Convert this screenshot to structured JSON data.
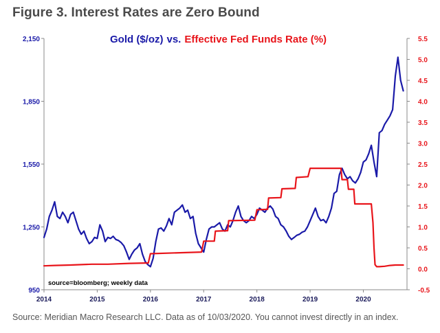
{
  "figure": {
    "title": "Figure 3. Interest Rates are Zero Bound",
    "footer": "Source: Meridian Macro Research LLC. Data as of 10/03/2020. You cannot invest directly in an index."
  },
  "colors": {
    "gold": "#1a1aa8",
    "fed": "#e8141a",
    "axis_left": "#1a1aa8",
    "axis_right": "#e8141a"
  },
  "chart_data": {
    "type": "line",
    "title_parts": {
      "gold": "Gold ($/oz)",
      "sep": "vs.",
      "fed": "Effective Fed Funds Rate (%)"
    },
    "annotation": "source=bloomberg; weekly data",
    "xlabel": "",
    "ylabel": "",
    "xlim": [
      2014.0,
      2020.82
    ],
    "y_left": {
      "lim": [
        950,
        2150
      ],
      "ticks": [
        950,
        1250,
        1550,
        1850,
        2150
      ],
      "tick_labels": [
        "950",
        "1,250",
        "1,550",
        "1,850",
        "2,150"
      ]
    },
    "y_right": {
      "lim": [
        -0.5,
        5.5
      ],
      "ticks": [
        -0.5,
        0.0,
        0.5,
        1.0,
        1.5,
        2.0,
        2.5,
        3.0,
        3.5,
        4.0,
        4.5,
        5.0,
        5.5
      ],
      "tick_labels": [
        "-0.5",
        "0.0",
        "0.5",
        "1.0",
        "1.5",
        "2.0",
        "2.5",
        "3.0",
        "3.5",
        "4.0",
        "4.5",
        "5.0",
        "5.5"
      ]
    },
    "x_ticks": [
      2014,
      2015,
      2016,
      2017,
      2018,
      2019,
      2020
    ],
    "x_tick_labels": [
      "2014",
      "2015",
      "2016",
      "2017",
      "2018",
      "2019",
      "2020"
    ],
    "series": [
      {
        "name": "Gold ($/oz)",
        "axis": "left",
        "x": [
          2014.0,
          2014.05,
          2014.1,
          2014.15,
          2014.2,
          2014.25,
          2014.3,
          2014.35,
          2014.4,
          2014.45,
          2014.5,
          2014.55,
          2014.6,
          2014.65,
          2014.7,
          2014.75,
          2014.8,
          2014.85,
          2014.9,
          2014.95,
          2015.0,
          2015.05,
          2015.1,
          2015.15,
          2015.2,
          2015.25,
          2015.3,
          2015.35,
          2015.4,
          2015.45,
          2015.5,
          2015.55,
          2015.6,
          2015.65,
          2015.7,
          2015.75,
          2015.8,
          2015.85,
          2015.9,
          2015.95,
          2016.0,
          2016.05,
          2016.1,
          2016.15,
          2016.2,
          2016.25,
          2016.3,
          2016.35,
          2016.4,
          2016.45,
          2016.5,
          2016.55,
          2016.6,
          2016.65,
          2016.7,
          2016.75,
          2016.8,
          2016.85,
          2016.9,
          2016.95,
          2017.0,
          2017.05,
          2017.1,
          2017.15,
          2017.2,
          2017.25,
          2017.3,
          2017.35,
          2017.4,
          2017.45,
          2017.5,
          2017.55,
          2017.6,
          2017.65,
          2017.7,
          2017.75,
          2017.8,
          2017.85,
          2017.9,
          2017.95,
          2018.0,
          2018.05,
          2018.1,
          2018.15,
          2018.2,
          2018.25,
          2018.3,
          2018.35,
          2018.4,
          2018.45,
          2018.5,
          2018.55,
          2018.6,
          2018.65,
          2018.7,
          2018.75,
          2018.8,
          2018.85,
          2018.9,
          2018.95,
          2019.0,
          2019.05,
          2019.1,
          2019.15,
          2019.2,
          2019.25,
          2019.3,
          2019.35,
          2019.4,
          2019.45,
          2019.5,
          2019.55,
          2019.6,
          2019.65,
          2019.7,
          2019.75,
          2019.8,
          2019.85,
          2019.9,
          2019.95,
          2020.0,
          2020.05,
          2020.1,
          2020.15,
          2020.2,
          2020.25,
          2020.3,
          2020.35,
          2020.4,
          2020.45,
          2020.5,
          2020.55,
          2020.6,
          2020.65,
          2020.7,
          2020.75
        ],
        "values": [
          1200,
          1240,
          1300,
          1330,
          1370,
          1300,
          1290,
          1320,
          1300,
          1270,
          1310,
          1320,
          1280,
          1240,
          1215,
          1230,
          1195,
          1170,
          1180,
          1200,
          1195,
          1260,
          1230,
          1180,
          1200,
          1195,
          1205,
          1190,
          1185,
          1175,
          1160,
          1130,
          1095,
          1120,
          1140,
          1150,
          1170,
          1120,
          1085,
          1070,
          1060,
          1100,
          1180,
          1240,
          1245,
          1230,
          1255,
          1290,
          1260,
          1320,
          1330,
          1340,
          1355,
          1320,
          1330,
          1290,
          1300,
          1220,
          1170,
          1150,
          1130,
          1190,
          1240,
          1250,
          1250,
          1260,
          1270,
          1240,
          1230,
          1260,
          1250,
          1280,
          1320,
          1350,
          1300,
          1280,
          1270,
          1280,
          1300,
          1290,
          1310,
          1340,
          1330,
          1320,
          1340,
          1350,
          1335,
          1300,
          1290,
          1260,
          1250,
          1230,
          1205,
          1190,
          1200,
          1210,
          1215,
          1225,
          1230,
          1250,
          1280,
          1310,
          1340,
          1300,
          1280,
          1285,
          1270,
          1300,
          1340,
          1410,
          1420,
          1500,
          1530,
          1500,
          1480,
          1490,
          1470,
          1460,
          1480,
          1510,
          1560,
          1570,
          1600,
          1640,
          1560,
          1490,
          1700,
          1710,
          1740,
          1760,
          1780,
          1810,
          1970,
          2060,
          1950,
          1900
        ]
      },
      {
        "name": "Effective Fed Funds Rate (%)",
        "axis": "right",
        "x": [
          2014.0,
          2014.2,
          2014.5,
          2014.9,
          2015.2,
          2015.6,
          2015.96,
          2016.0,
          2016.96,
          2017.0,
          2017.2,
          2017.22,
          2017.45,
          2017.47,
          2017.96,
          2018.0,
          2018.2,
          2018.22,
          2018.45,
          2018.47,
          2018.72,
          2018.74,
          2018.96,
          2019.0,
          2019.58,
          2019.6,
          2019.7,
          2019.72,
          2019.82,
          2019.84,
          2020.0,
          2020.15,
          2020.18,
          2020.2,
          2020.22,
          2020.25,
          2020.3,
          2020.4,
          2020.5,
          2020.6,
          2020.75
        ],
        "values": [
          0.07,
          0.08,
          0.09,
          0.11,
          0.11,
          0.13,
          0.14,
          0.36,
          0.4,
          0.66,
          0.66,
          0.9,
          0.91,
          1.15,
          1.16,
          1.41,
          1.42,
          1.69,
          1.7,
          1.91,
          1.92,
          2.18,
          2.2,
          2.4,
          2.4,
          2.13,
          2.13,
          1.9,
          1.9,
          1.55,
          1.55,
          1.55,
          1.1,
          0.5,
          0.1,
          0.05,
          0.05,
          0.06,
          0.08,
          0.09,
          0.09
        ]
      }
    ]
  }
}
